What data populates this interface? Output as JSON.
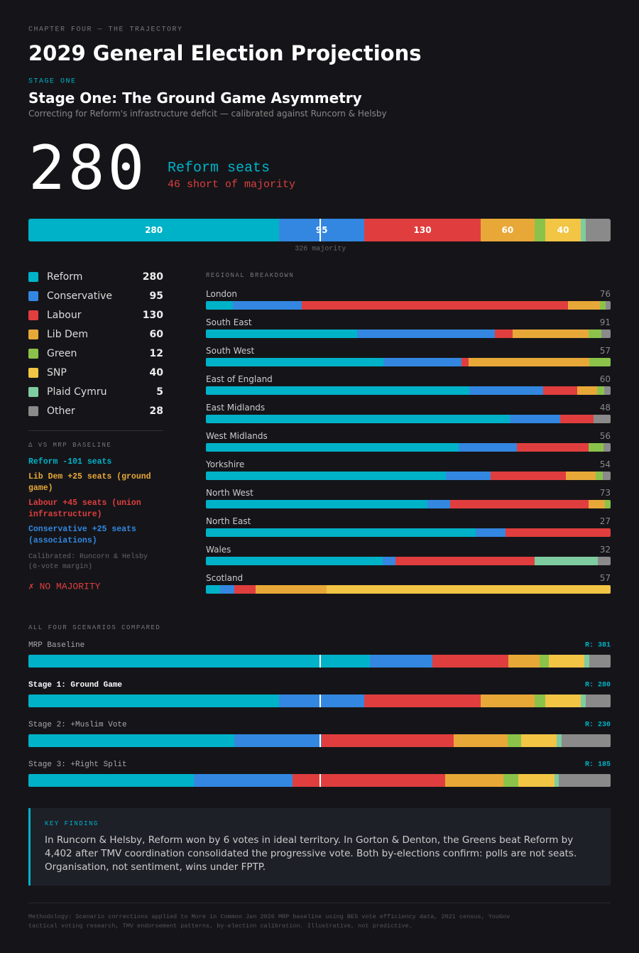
{
  "header": {
    "kicker": "CHAPTER FOUR — THE TRAJECTORY",
    "title": "2029 General Election Projections",
    "stage_label": "STAGE ONE",
    "subtitle": "Stage One: The Ground Game Asymmetry",
    "description": "Correcting for Reform's infrastructure deficit — calibrated against Runcorn & Helsby"
  },
  "hero": {
    "caption": "Reform seats",
    "note": "46 short of majority"
  },
  "chart_data": [
    {
      "type": "stacked-bar",
      "categories": [
        null
      ],
      "majority": {
        "value": 326,
        "label": "326 majority"
      },
      "series": [
        {
          "name": "Reform",
          "color": "#00b2c8",
          "values": [
            280
          ]
        },
        {
          "name": "Conservative",
          "color": "#3387e0",
          "values": [
            95
          ]
        },
        {
          "name": "Labour",
          "color": "#e03e3e",
          "values": [
            130
          ]
        },
        {
          "name": "Lib Dem",
          "color": "#e8a838",
          "values": [
            60
          ]
        },
        {
          "name": "Green",
          "color": "#8bc34a",
          "values": [
            12
          ]
        },
        {
          "name": "SNP",
          "color": "#f2c544",
          "values": [
            40
          ]
        },
        {
          "name": "Plaid Cymru",
          "color": "#7fcca0",
          "values": [
            5
          ]
        },
        {
          "name": "Other",
          "color": "#8a8a8a",
          "values": [
            28
          ]
        }
      ]
    },
    {
      "type": "stacked-bar",
      "title": "REGIONAL BREAKDOWN",
      "categories": [
        "London",
        "South East",
        "South West",
        "East of England",
        "East Midlands",
        "West Midlands",
        "Yorkshire",
        "North West",
        "North East",
        "Wales",
        "Scotland"
      ],
      "totals": [
        76,
        91,
        57,
        60,
        48,
        56,
        54,
        73,
        27,
        32,
        57
      ],
      "series": [
        {
          "name": "Reform",
          "color": "#00b2c8",
          "values": [
            5,
            34,
            25,
            39,
            36,
            35,
            32,
            40,
            18,
            14,
            2
          ]
        },
        {
          "name": "Conservative",
          "color": "#3387e0",
          "values": [
            13,
            31,
            11,
            11,
            6,
            8,
            6,
            4,
            2,
            1,
            2
          ]
        },
        {
          "name": "Labour",
          "color": "#e03e3e",
          "values": [
            50,
            4,
            1,
            5,
            4,
            10,
            10,
            25,
            7,
            11,
            3
          ]
        },
        {
          "name": "Lib Dem",
          "color": "#e8a838",
          "values": [
            6,
            17,
            17,
            3,
            0,
            0,
            4,
            3,
            0,
            0,
            10
          ]
        },
        {
          "name": "Green",
          "color": "#8bc34a",
          "values": [
            1,
            3,
            3,
            1,
            0,
            2,
            1,
            1,
            0,
            0,
            0
          ]
        },
        {
          "name": "SNP",
          "color": "#f2c544",
          "values": [
            0,
            0,
            0,
            0,
            0,
            0,
            0,
            0,
            0,
            0,
            40
          ]
        },
        {
          "name": "Plaid Cymru",
          "color": "#7fcca0",
          "values": [
            0,
            0,
            0,
            0,
            0,
            0,
            0,
            0,
            0,
            5,
            0
          ]
        },
        {
          "name": "Other",
          "color": "#8a8a8a",
          "values": [
            1,
            2,
            0,
            1,
            2,
            1,
            1,
            0,
            0,
            1,
            0
          ]
        }
      ]
    },
    {
      "type": "stacked-bar",
      "title": "ALL FOUR SCENARIOS COMPARED",
      "categories": [
        "MRP Baseline",
        "Stage 1: Ground Game",
        "Stage 2: +Muslim Vote",
        "Stage 3: +Right Split"
      ],
      "highlight_index": 1,
      "summary_labels": [
        "R: 381",
        "R: 280",
        "R: 230",
        "R: 185"
      ],
      "majority": {
        "value": 326
      },
      "series": [
        {
          "name": "Reform",
          "color": "#00b2c8",
          "values": [
            381,
            280,
            230,
            185
          ]
        },
        {
          "name": "Conservative",
          "color": "#3387e0",
          "values": [
            70,
            95,
            97,
            110
          ]
        },
        {
          "name": "Labour",
          "color": "#e03e3e",
          "values": [
            85,
            130,
            148,
            170
          ]
        },
        {
          "name": "Lib Dem",
          "color": "#e8a838",
          "values": [
            35,
            60,
            60,
            65
          ]
        },
        {
          "name": "Green",
          "color": "#8bc34a",
          "values": [
            10,
            12,
            15,
            17
          ]
        },
        {
          "name": "SNP",
          "color": "#f2c544",
          "values": [
            40,
            40,
            40,
            40
          ]
        },
        {
          "name": "Plaid Cymru",
          "color": "#7fcca0",
          "values": [
            5,
            5,
            5,
            5
          ]
        },
        {
          "name": "Other",
          "color": "#8a8a8a",
          "values": [
            24,
            28,
            55,
            58
          ]
        }
      ]
    }
  ],
  "deltas": {
    "title": "Δ VS MRP BASELINE",
    "items": [
      {
        "text": "Reform -101 seats",
        "color": "#00b2c8"
      },
      {
        "text": "Lib Dem +25 seats (ground game)",
        "color": "#e8a838"
      },
      {
        "text": "Labour +45 seats (union infrastructure)",
        "color": "#e03e3e"
      },
      {
        "text": "Conservative +25 seats (associations)",
        "color": "#3387e0"
      }
    ],
    "calibration": "Calibrated: Runcorn & Helsby (6-vote margin)",
    "verdict": "✗ NO MAJORITY"
  },
  "key_finding": {
    "label": "KEY FINDING",
    "text": "In Runcorn & Helsby, Reform won by 6 votes in ideal territory. In Gorton & Denton, the Greens beat Reform by 4,402 after TMV coordination consolidated the progressive vote. Both by-elections confirm: polls are not seats. Organisation, not sentiment, wins under FPTP."
  },
  "footer": "Methodology: Scenario corrections applied to More in Common Jan 2026 MRP baseline using BES vote efficiency data, 2021 census, YouGov tactical voting research, TMV endorsement patterns, by-election calibration. Illustrative, not predictive."
}
